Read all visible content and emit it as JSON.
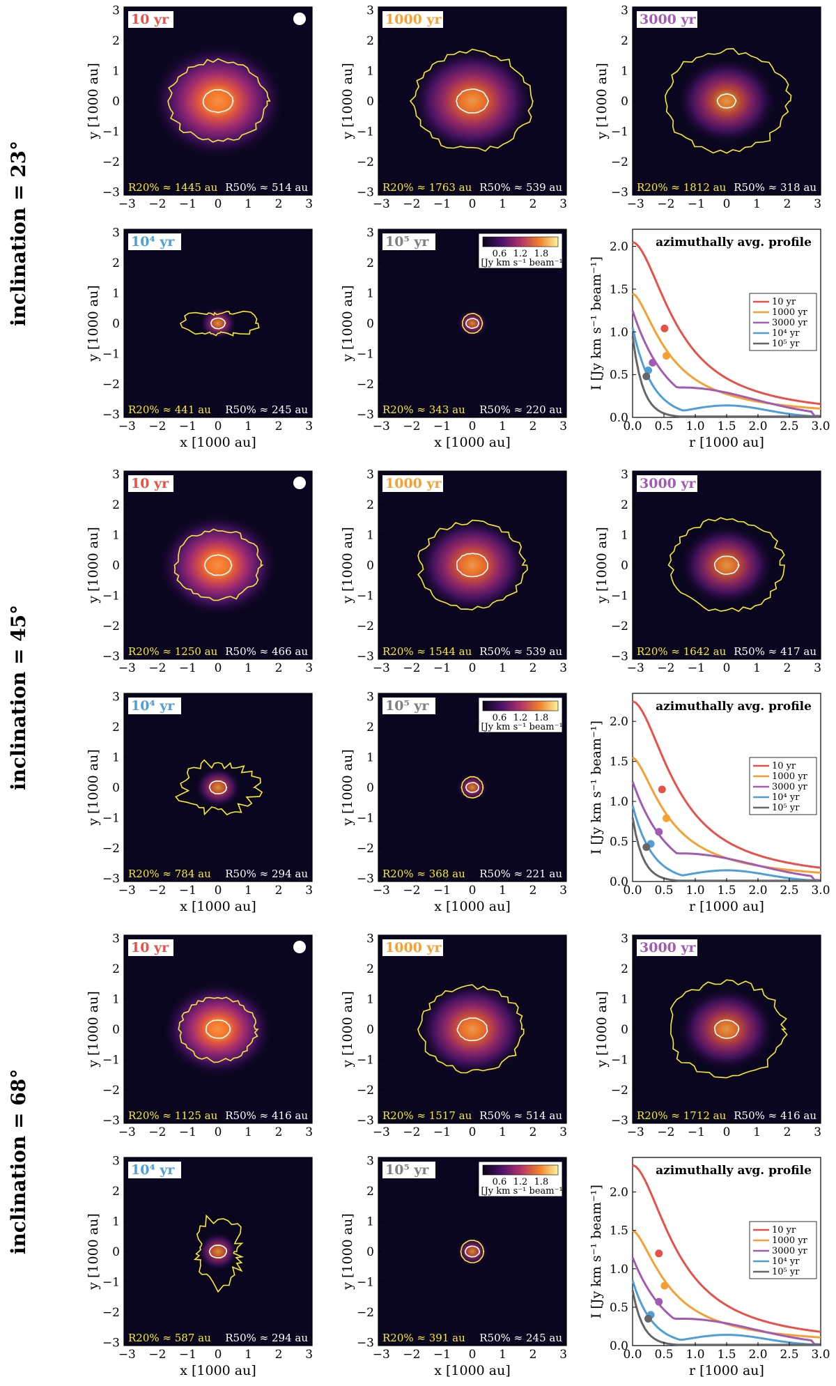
{
  "figure": {
    "image_axes": {
      "xlabel": "x [1000 au]",
      "ylabel": "y [1000 au]",
      "ticks": [
        "−3",
        "−2",
        "−1",
        "0",
        "1",
        "2",
        "3"
      ]
    },
    "profile_axes": {
      "title": "azimuthally avg. profile",
      "xlabel": "r [1000 au]",
      "ylabel": "I [Jy km s⁻¹ beam⁻¹]",
      "xticks": [
        "0.0",
        "0.5",
        "1.0",
        "1.5",
        "2.0",
        "2.5",
        "3.0"
      ]
    },
    "colorbar": {
      "label": "I [Jy km s⁻¹ beam⁻¹]",
      "ticks": [
        "0.6",
        "1.2",
        "1.8"
      ]
    },
    "r20_label": "R20% ≈ ",
    "r50_label": "R50% ≈ ",
    "au": " au"
  },
  "chart_data": [
    {
      "type": "image-grid",
      "title": "inclination = 23°",
      "panels": [
        {
          "time": "10 yr",
          "color": "#e8504a",
          "r20": "1445",
          "r50": "514",
          "cx": 0,
          "cy": 0,
          "r20k": 1.445,
          "r50k": 0.514,
          "core": 1.0,
          "shape": "round"
        },
        {
          "time": "1000 yr",
          "color": "#f5a030",
          "r20": "1763",
          "r50": "539",
          "cx": 0,
          "cy": 0,
          "r20k": 1.763,
          "r50k": 0.539,
          "core": 0.75,
          "shape": "round"
        },
        {
          "time": "3000 yr",
          "color": "#a25bb3",
          "r20": "1812",
          "r50": "318",
          "cx": 0,
          "cy": 0,
          "r20k": 1.812,
          "r50k": 0.318,
          "core": 0.55,
          "shape": "round"
        },
        {
          "time": "10⁴ yr",
          "color": "#4f9fd6",
          "r20": "441",
          "r50": "245",
          "cx": 0,
          "cy": 0,
          "r20k": 0.441,
          "r50k": 0.245,
          "core": 0.35,
          "shape": "bowtie"
        },
        {
          "time": "10⁵ yr",
          "color": "#808080",
          "r20": "343",
          "r50": "220",
          "cx": 0,
          "cy": 0,
          "r20k": 0.343,
          "r50k": 0.22,
          "core": 0.25,
          "shape": "compact"
        }
      ],
      "profile": {
        "ylim": [
          0,
          2.2
        ],
        "yticks": [
          0.0,
          0.5,
          1.0,
          1.5,
          2.0
        ],
        "xlim": [
          0,
          3
        ],
        "series": [
          {
            "name": "10 yr",
            "color": "#e8504a",
            "peak": 2.05,
            "marker": [
              0.51,
              1.04
            ]
          },
          {
            "name": "1000 yr",
            "color": "#f5a030",
            "peak": 1.45,
            "marker": [
              0.54,
              0.72
            ]
          },
          {
            "name": "3000 yr",
            "color": "#a25bb3",
            "peak": 1.25,
            "marker": [
              0.32,
              0.64
            ]
          },
          {
            "name": "10⁴ yr",
            "color": "#4f9fd6",
            "peak": 1.05,
            "marker": [
              0.25,
              0.55
            ]
          },
          {
            "name": "10⁵ yr",
            "color": "#666666",
            "peak": 0.95,
            "marker": [
              0.22,
              0.48
            ]
          }
        ]
      }
    },
    {
      "type": "image-grid",
      "title": "inclination = 45°",
      "panels": [
        {
          "time": "10 yr",
          "color": "#e8504a",
          "r20": "1250",
          "r50": "466",
          "cx": 0,
          "cy": 0,
          "r20k": 1.25,
          "r50k": 0.466,
          "core": 1.0,
          "shape": "round"
        },
        {
          "time": "1000 yr",
          "color": "#f5a030",
          "r20": "1544",
          "r50": "539",
          "cx": 0,
          "cy": 0,
          "r20k": 1.544,
          "r50k": 0.539,
          "core": 0.75,
          "shape": "round"
        },
        {
          "time": "3000 yr",
          "color": "#a25bb3",
          "r20": "1642",
          "r50": "417",
          "cx": 0,
          "cy": 0,
          "r20k": 1.642,
          "r50k": 0.417,
          "core": 0.55,
          "shape": "round"
        },
        {
          "time": "10⁴ yr",
          "color": "#4f9fd6",
          "r20": "784",
          "r50": "294",
          "cx": 0,
          "cy": 0,
          "r20k": 0.784,
          "r50k": 0.294,
          "core": 0.35,
          "shape": "patchy"
        },
        {
          "time": "10⁵ yr",
          "color": "#808080",
          "r20": "368",
          "r50": "221",
          "cx": 0,
          "cy": 0,
          "r20k": 0.368,
          "r50k": 0.221,
          "core": 0.25,
          "shape": "compact"
        }
      ],
      "profile": {
        "ylim": [
          0,
          2.35
        ],
        "yticks": [
          0.0,
          0.5,
          1.0,
          1.5,
          2.0
        ],
        "xlim": [
          0,
          3
        ],
        "series": [
          {
            "name": "10 yr",
            "color": "#e8504a",
            "peak": 2.25,
            "marker": [
              0.47,
              1.15
            ]
          },
          {
            "name": "1000 yr",
            "color": "#f5a030",
            "peak": 1.55,
            "marker": [
              0.54,
              0.79
            ]
          },
          {
            "name": "3000 yr",
            "color": "#a25bb3",
            "peak": 1.25,
            "marker": [
              0.42,
              0.62
            ]
          },
          {
            "name": "10⁴ yr",
            "color": "#4f9fd6",
            "peak": 0.95,
            "marker": [
              0.29,
              0.47
            ]
          },
          {
            "name": "10⁵ yr",
            "color": "#666666",
            "peak": 0.8,
            "marker": [
              0.22,
              0.43
            ]
          }
        ]
      }
    },
    {
      "type": "image-grid",
      "title": "inclination = 68°",
      "panels": [
        {
          "time": "10 yr",
          "color": "#e8504a",
          "r20": "1125",
          "r50": "416",
          "cx": 0,
          "cy": 0,
          "r20k": 1.125,
          "r50k": 0.416,
          "core": 1.0,
          "shape": "round"
        },
        {
          "time": "1000 yr",
          "color": "#f5a030",
          "r20": "1517",
          "r50": "514",
          "cx": 0,
          "cy": 0,
          "r20k": 1.517,
          "r50k": 0.514,
          "core": 0.75,
          "shape": "round"
        },
        {
          "time": "3000 yr",
          "color": "#a25bb3",
          "r20": "1712",
          "r50": "416",
          "cx": 0,
          "cy": 0,
          "r20k": 1.712,
          "r50k": 0.416,
          "core": 0.55,
          "shape": "round"
        },
        {
          "time": "10⁴ yr",
          "color": "#4f9fd6",
          "r20": "587",
          "r50": "294",
          "cx": 0,
          "cy": 0,
          "r20k": 0.587,
          "r50k": 0.294,
          "core": 0.35,
          "shape": "vertical"
        },
        {
          "time": "10⁵ yr",
          "color": "#808080",
          "r20": "391",
          "r50": "245",
          "cx": 0,
          "cy": 0,
          "r20k": 0.391,
          "r50k": 0.245,
          "core": 0.25,
          "shape": "compact"
        }
      ],
      "profile": {
        "ylim": [
          0,
          2.45
        ],
        "yticks": [
          0.0,
          0.5,
          1.0,
          1.5,
          2.0
        ],
        "xlim": [
          0,
          3
        ],
        "series": [
          {
            "name": "10 yr",
            "color": "#e8504a",
            "peak": 2.35,
            "marker": [
              0.42,
              1.2
            ]
          },
          {
            "name": "1000 yr",
            "color": "#f5a030",
            "peak": 1.5,
            "marker": [
              0.51,
              0.78
            ]
          },
          {
            "name": "3000 yr",
            "color": "#a25bb3",
            "peak": 1.15,
            "marker": [
              0.42,
              0.57
            ]
          },
          {
            "name": "10⁴ yr",
            "color": "#4f9fd6",
            "peak": 0.85,
            "marker": [
              0.29,
              0.4
            ]
          },
          {
            "name": "10⁵ yr",
            "color": "#666666",
            "peak": 0.72,
            "marker": [
              0.25,
              0.35
            ]
          }
        ]
      }
    }
  ]
}
